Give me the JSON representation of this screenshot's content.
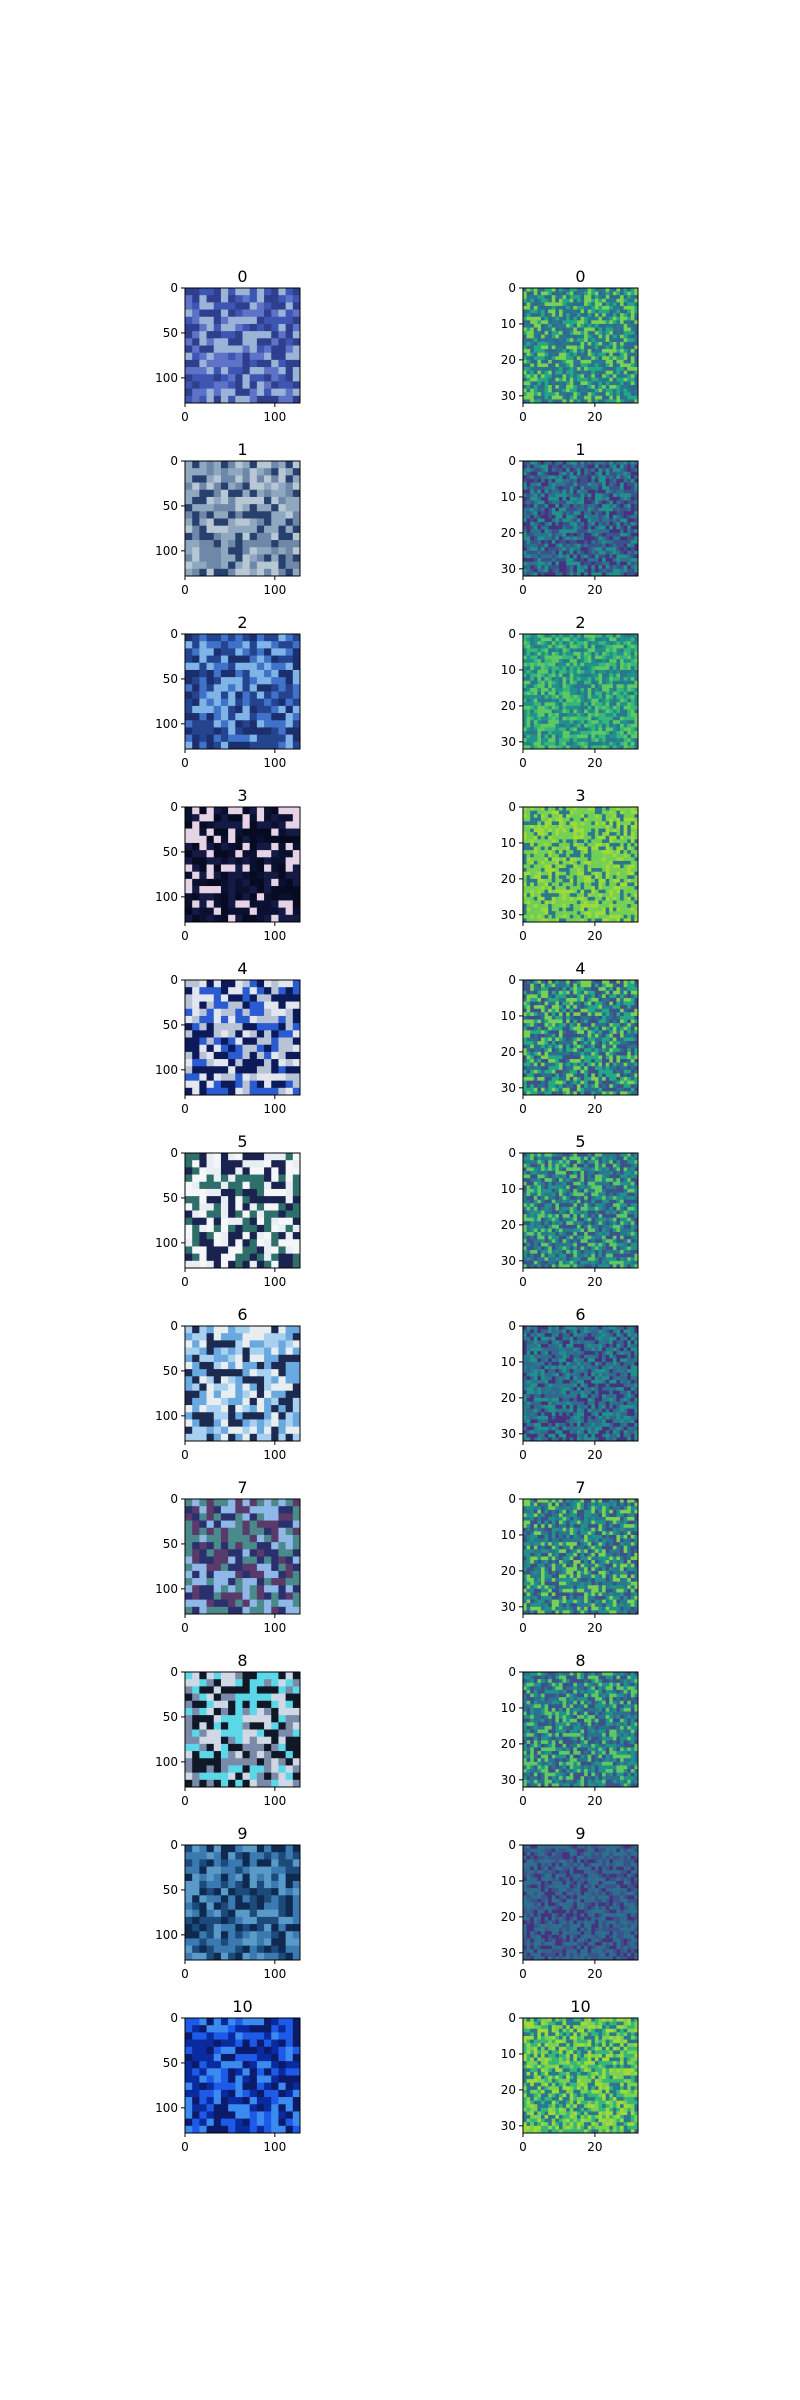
{
  "chart_data": {
    "type": "heatmap",
    "panels": [
      {
        "title": "0",
        "kind": "photo",
        "xlim": [
          0,
          128
        ],
        "ylim": [
          128,
          0
        ],
        "xticks": [
          "0",
          "100"
        ],
        "yticks": [
          "0",
          "50",
          "100"
        ],
        "colors": [
          "#2f3f8e",
          "#5e72c7",
          "#9ab4d8",
          "#3d56b3"
        ]
      },
      {
        "title": "0",
        "kind": "feature",
        "xlim": [
          0,
          32
        ],
        "ylim": [
          32,
          0
        ],
        "xticks": [
          "0",
          "20"
        ],
        "yticks": [
          "0",
          "10",
          "20",
          "30"
        ],
        "colors": [
          "#2a788e",
          "#22a884",
          "#31688e",
          "#7ad151"
        ]
      },
      {
        "title": "1",
        "kind": "photo",
        "xlim": [
          0,
          128
        ],
        "ylim": [
          128,
          0
        ],
        "xticks": [
          "0",
          "100"
        ],
        "yticks": [
          "0",
          "50",
          "100"
        ],
        "colors": [
          "#8fa8c0",
          "#b7c8d4",
          "#27406e",
          "#6f88a8"
        ]
      },
      {
        "title": "1",
        "kind": "feature",
        "xlim": [
          0,
          32
        ],
        "ylim": [
          32,
          0
        ],
        "xticks": [
          "0",
          "20"
        ],
        "yticks": [
          "0",
          "10",
          "20",
          "30"
        ],
        "colors": [
          "#3b528b",
          "#2c728e",
          "#46327e",
          "#21918c"
        ]
      },
      {
        "title": "2",
        "kind": "photo",
        "xlim": [
          0,
          128
        ],
        "ylim": [
          128,
          0
        ],
        "xticks": [
          "0",
          "100"
        ],
        "yticks": [
          "0",
          "50",
          "100"
        ],
        "colors": [
          "#1b2f6e",
          "#3f72c8",
          "#7fb4e6",
          "#25448f"
        ]
      },
      {
        "title": "2",
        "kind": "feature",
        "xlim": [
          0,
          32
        ],
        "ylim": [
          32,
          0
        ],
        "xticks": [
          "0",
          "20"
        ],
        "yticks": [
          "0",
          "10",
          "20",
          "30"
        ],
        "colors": [
          "#21918c",
          "#35b779",
          "#2a788e",
          "#5ec962"
        ]
      },
      {
        "title": "3",
        "kind": "photo",
        "xlim": [
          0,
          128
        ],
        "ylim": [
          128,
          0
        ],
        "xticks": [
          "0",
          "100"
        ],
        "yticks": [
          "0",
          "50",
          "100"
        ],
        "colors": [
          "#e6d4e6",
          "#0a1030",
          "#070b22",
          "#141a44"
        ]
      },
      {
        "title": "3",
        "kind": "feature",
        "xlim": [
          0,
          32
        ],
        "ylim": [
          32,
          0
        ],
        "xticks": [
          "0",
          "20"
        ],
        "yticks": [
          "0",
          "10",
          "20",
          "30"
        ],
        "colors": [
          "#7ad151",
          "#a0da39",
          "#2a788e",
          "#6ece58"
        ]
      },
      {
        "title": "4",
        "kind": "photo",
        "xlim": [
          0,
          128
        ],
        "ylim": [
          128,
          0
        ],
        "xticks": [
          "0",
          "100"
        ],
        "yticks": [
          "0",
          "50",
          "100"
        ],
        "colors": [
          "#0c1a5a",
          "#b8c4d6",
          "#2a5bd0",
          "#e2e6ee"
        ]
      },
      {
        "title": "4",
        "kind": "feature",
        "xlim": [
          0,
          32
        ],
        "ylim": [
          32,
          0
        ],
        "xticks": [
          "0",
          "20"
        ],
        "yticks": [
          "0",
          "10",
          "20",
          "30"
        ],
        "colors": [
          "#2c728e",
          "#22a884",
          "#3b528b",
          "#7ad151"
        ]
      },
      {
        "title": "5",
        "kind": "photo",
        "xlim": [
          0,
          128
        ],
        "ylim": [
          128,
          0
        ],
        "xticks": [
          "0",
          "100"
        ],
        "yticks": [
          "0",
          "50",
          "100"
        ],
        "colors": [
          "#1a2250",
          "#e8eef4",
          "#2f6f6a",
          "#f4f6f8"
        ]
      },
      {
        "title": "5",
        "kind": "feature",
        "xlim": [
          0,
          32
        ],
        "ylim": [
          32,
          0
        ],
        "xticks": [
          "0",
          "20"
        ],
        "yticks": [
          "0",
          "10",
          "20",
          "30"
        ],
        "colors": [
          "#2a788e",
          "#21918c",
          "#3b528b",
          "#5ec962"
        ]
      },
      {
        "title": "6",
        "kind": "photo",
        "xlim": [
          0,
          128
        ],
        "ylim": [
          128,
          0
        ],
        "xticks": [
          "0",
          "100"
        ],
        "yticks": [
          "0",
          "50",
          "100"
        ],
        "colors": [
          "#1c2a50",
          "#6aa8e0",
          "#a8d0f0",
          "#e8eef0"
        ]
      },
      {
        "title": "6",
        "kind": "feature",
        "xlim": [
          0,
          32
        ],
        "ylim": [
          32,
          0
        ],
        "xticks": [
          "0",
          "20"
        ],
        "yticks": [
          "0",
          "10",
          "20",
          "30"
        ],
        "colors": [
          "#31688e",
          "#2a788e",
          "#21918c",
          "#46327e"
        ]
      },
      {
        "title": "7",
        "kind": "photo",
        "xlim": [
          0,
          128
        ],
        "ylim": [
          128,
          0
        ],
        "xticks": [
          "0",
          "100"
        ],
        "yticks": [
          "0",
          "50",
          "100"
        ],
        "colors": [
          "#2a2f6e",
          "#8fb8e8",
          "#5a3a6a",
          "#4a8a8a"
        ]
      },
      {
        "title": "7",
        "kind": "feature",
        "xlim": [
          0,
          32
        ],
        "ylim": [
          32,
          0
        ],
        "xticks": [
          "0",
          "20"
        ],
        "yticks": [
          "0",
          "10",
          "20",
          "30"
        ],
        "colors": [
          "#2a788e",
          "#21918c",
          "#3b528b",
          "#7ad151"
        ]
      },
      {
        "title": "8",
        "kind": "photo",
        "xlim": [
          0,
          128
        ],
        "ylim": [
          128,
          0
        ],
        "xticks": [
          "0",
          "100"
        ],
        "yticks": [
          "0",
          "50",
          "100"
        ],
        "colors": [
          "#101828",
          "#7a8aa8",
          "#cfd8e4",
          "#5ad8e8"
        ]
      },
      {
        "title": "8",
        "kind": "feature",
        "xlim": [
          0,
          32
        ],
        "ylim": [
          32,
          0
        ],
        "xticks": [
          "0",
          "20"
        ],
        "yticks": [
          "0",
          "10",
          "20",
          "30"
        ],
        "colors": [
          "#2c728e",
          "#3b528b",
          "#21918c",
          "#5ec962"
        ]
      },
      {
        "title": "9",
        "kind": "photo",
        "xlim": [
          0,
          128
        ],
        "ylim": [
          128,
          0
        ],
        "xticks": [
          "0",
          "100"
        ],
        "yticks": [
          "0",
          "50",
          "100"
        ],
        "colors": [
          "#1c4a7a",
          "#3a7ab0",
          "#0e2a50",
          "#5a9ac8"
        ]
      },
      {
        "title": "9",
        "kind": "feature",
        "xlim": [
          0,
          32
        ],
        "ylim": [
          32,
          0
        ],
        "xticks": [
          "0",
          "20"
        ],
        "yticks": [
          "0",
          "10",
          "20",
          "30"
        ],
        "colors": [
          "#31688e",
          "#3b528b",
          "#2c728e",
          "#46327e"
        ]
      },
      {
        "title": "10",
        "kind": "photo",
        "xlim": [
          0,
          128
        ],
        "ylim": [
          128,
          0
        ],
        "xticks": [
          "0",
          "100"
        ],
        "yticks": [
          "0",
          "50",
          "100"
        ],
        "colors": [
          "#1e5ae8",
          "#0a2aa0",
          "#3a8af0",
          "#0c1a6a"
        ]
      },
      {
        "title": "10",
        "kind": "feature",
        "xlim": [
          0,
          32
        ],
        "ylim": [
          32,
          0
        ],
        "xticks": [
          "0",
          "20"
        ],
        "yticks": [
          "0",
          "10",
          "20",
          "30"
        ],
        "colors": [
          "#a0da39",
          "#7ad151",
          "#35b779",
          "#2a788e"
        ]
      }
    ]
  }
}
